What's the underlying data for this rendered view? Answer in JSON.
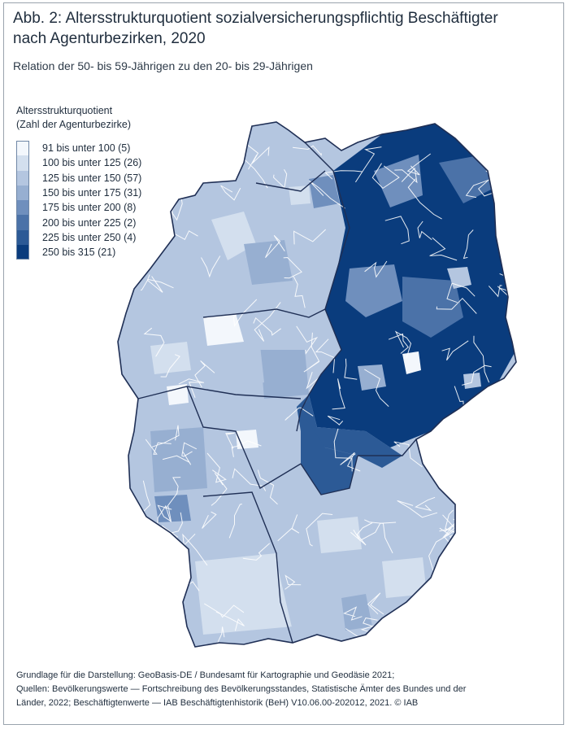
{
  "title": {
    "line1": "Abb. 2: Altersstrukturquotient sozialversicherungspflichtig Beschäftigter",
    "line2": "nach Agenturbezirken, 2020"
  },
  "subtitle": "Relation der 50- bis 59-Jährigen zu den 20- bis 29-Jährigen",
  "legend": {
    "title_line1": "Altersstrukturquotient",
    "title_line2": "(Zahl der Agenturbezirke)",
    "items": [
      {
        "label": "91 bis unter 100 (5)",
        "color": "#f3f7fc"
      },
      {
        "label": "100 bis unter 125 (26)",
        "color": "#d3dfee"
      },
      {
        "label": "125 bis unter 150 (57)",
        "color": "#b4c6e0"
      },
      {
        "label": "150 bis unter 175 (31)",
        "color": "#97afd1"
      },
      {
        "label": "175 bis unter 200 (8)",
        "color": "#6f8fbd"
      },
      {
        "label": "200 bis unter 225 (2)",
        "color": "#4b72a8"
      },
      {
        "label": "225 bis unter 250 (4)",
        "color": "#2c5a96"
      },
      {
        "label": "250 bis 315 (21)",
        "color": "#0a3c7d"
      }
    ]
  },
  "map": {
    "border_color": "#1f2f55",
    "district_line_color": "#ffffff"
  },
  "footer": {
    "line1": "Grundlage für die Darstellung: GeoBasis-DE / Bundesamt für Kartographie und Geodäsie 2021;",
    "line2": "Quellen: Bevölkerungswerte — Fortschreibung des Bevölkerungsstandes, Statistische Ämter des Bundes und der",
    "line3": "Länder, 2022; Beschäftigtenwerte — IAB Beschäftigtenhistorik (BeH) V10.06.00-202012, 2021. © IAB"
  }
}
